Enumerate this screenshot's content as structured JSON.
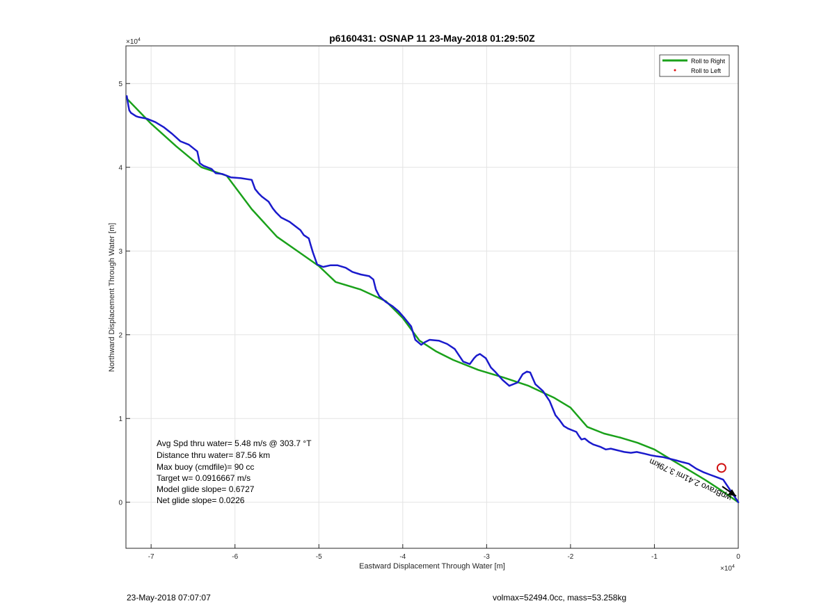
{
  "chart_data": {
    "type": "line",
    "title": "p6160431: OSNAP 11 23-May-2018 01:29:50Z",
    "xlabel": "Eastward Displacement Through Water [m]",
    "ylabel": "Northward Displacement Through Water [m]",
    "x_exponent": "×10",
    "x_exponent_power": "4",
    "y_exponent": "×10",
    "y_exponent_power": "4",
    "xlim": [
      -73000,
      0
    ],
    "ylim": [
      -5500,
      54500
    ],
    "xticks": [
      -70000,
      -60000,
      -50000,
      -40000,
      -30000,
      -20000,
      -10000,
      0
    ],
    "xtick_labels": [
      "-7",
      "-6",
      "-5",
      "-4",
      "-3",
      "-2",
      "-1",
      "0"
    ],
    "yticks": [
      0,
      10000,
      20000,
      30000,
      40000,
      50000
    ],
    "ytick_labels": [
      "0",
      "1",
      "2",
      "3",
      "4",
      "5"
    ],
    "grid": true,
    "legend_placement": "top-right",
    "legend": [
      {
        "label": "Roll to Right",
        "color": "#1aa11a",
        "style": "line"
      },
      {
        "label": "Roll to Left",
        "color": "#e01010",
        "style": "dot"
      }
    ],
    "series": [
      {
        "name": "Roll to Right",
        "color": "#1aa11a",
        "x": [
          -72900,
          -70000,
          -67000,
          -64000,
          -61000,
          -58000,
          -55000,
          -52000,
          -50000,
          -48000,
          -45000,
          -42000,
          -40000,
          -38000,
          -36000,
          -34000,
          -31000,
          -28000,
          -25000,
          -22000,
          -20000,
          -18000,
          -16000,
          -14000,
          -12000,
          -10000,
          -8000,
          -6000,
          -4000,
          -2000,
          0
        ],
        "y": [
          48200,
          45200,
          42500,
          40000,
          39000,
          35000,
          31700,
          29600,
          28200,
          26300,
          25400,
          24000,
          22000,
          19300,
          18000,
          17000,
          15800,
          14900,
          13900,
          12500,
          11300,
          9000,
          8200,
          7700,
          7100,
          6300,
          5100,
          3900,
          2700,
          1400,
          0
        ]
      },
      {
        "name": "",
        "color": "#1a1acc",
        "x": [
          -72900,
          -72700,
          -72600,
          -72400,
          -71800,
          -71500,
          -70500,
          -69500,
          -68500,
          -67500,
          -66500,
          -65500,
          -64500,
          -64200,
          -63800,
          -62800,
          -62300,
          -61500,
          -60500,
          -59300,
          -58000,
          -57600,
          -57200,
          -56800,
          -56000,
          -55500,
          -55100,
          -54500,
          -53500,
          -52200,
          -51800,
          -51200,
          -51000,
          -50700,
          -50200,
          -49500,
          -48600,
          -47800,
          -46800,
          -46000,
          -45000,
          -44000,
          -43500,
          -43200,
          -42800,
          -42000,
          -41200,
          -40500,
          -39800,
          -39000,
          -38500,
          -37800,
          -37400,
          -36800,
          -35700,
          -34700,
          -33800,
          -32800,
          -32000,
          -31500,
          -31200,
          -30800,
          -30100,
          -29500,
          -29000,
          -28100,
          -27300,
          -26300,
          -25700,
          -25200,
          -24800,
          -24200,
          -23300,
          -22500,
          -21800,
          -21300,
          -20800,
          -20300,
          -19800,
          -19300,
          -19000,
          -18700,
          -18300,
          -17800,
          -17300,
          -16400,
          -15800,
          -15200,
          -14400,
          -13600,
          -12800,
          -12100,
          -11200,
          -10400,
          -9800,
          -9000,
          -8200,
          -7400,
          -6700,
          -5900,
          -5000,
          -4200,
          -3400,
          -2600,
          -1800,
          -1000,
          0
        ],
        "y": [
          48500,
          47300,
          46800,
          46500,
          46100,
          46000,
          45800,
          45400,
          44800,
          44000,
          43100,
          42700,
          41900,
          40500,
          40200,
          39800,
          39300,
          39200,
          38800,
          38700,
          38500,
          37400,
          36900,
          36500,
          35900,
          35100,
          34600,
          34000,
          33500,
          32500,
          31900,
          31500,
          30800,
          29800,
          28400,
          28100,
          28300,
          28300,
          28000,
          27500,
          27200,
          27000,
          26600,
          25400,
          24600,
          23900,
          23400,
          22800,
          22000,
          21000,
          19400,
          18800,
          19100,
          19400,
          19300,
          18900,
          18300,
          16800,
          16500,
          17200,
          17500,
          17700,
          17200,
          16100,
          15600,
          14600,
          13900,
          14300,
          15300,
          15600,
          15500,
          14100,
          13300,
          12100,
          10400,
          9800,
          9100,
          8800,
          8600,
          8400,
          7900,
          7500,
          7600,
          7200,
          6900,
          6600,
          6300,
          6400,
          6200,
          6000,
          5900,
          6000,
          5800,
          5600,
          5500,
          5400,
          5200,
          5000,
          4800,
          4600,
          4000,
          3600,
          3300,
          3000,
          2700,
          1500,
          0
        ]
      }
    ],
    "markers": [
      {
        "label": "target",
        "x": -2000,
        "y": 4100,
        "color": "#d01010",
        "shape": "circle"
      }
    ],
    "path_annotation": "wpBravo 2.41mi 3.79km",
    "stats": [
      "Avg Spd thru water=  5.48 m/s @ 303.7 °T",
      "Distance thru water= 87.56 km",
      "Max buoy (cmdfile)= 90 cc",
      "Target w= 0.0916667 m/s",
      "Model glide slope= 0.6727",
      "Net glide slope= 0.0226"
    ]
  },
  "footer": {
    "timestamp": "23-May-2018 07:07:07",
    "summary": "volmax=52494.0cc, mass=53.258kg"
  }
}
